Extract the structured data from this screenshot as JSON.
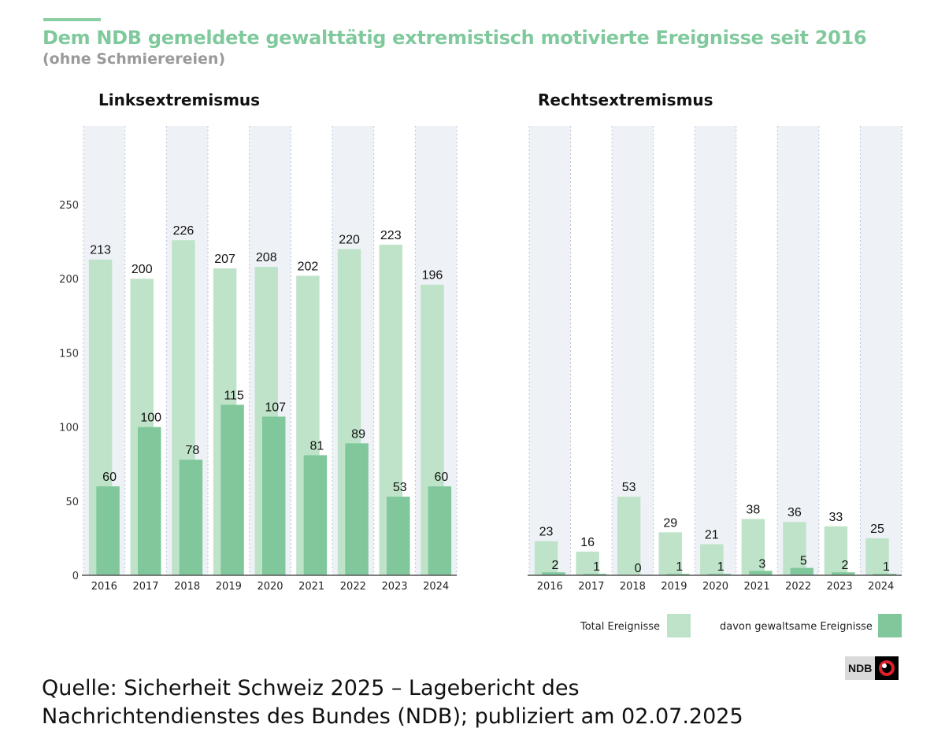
{
  "title": "Dem NDB gemeldete gewalttätig extremistisch motivierte Ereignisse seit 2016",
  "subtitle": "(ohne Schmierereien)",
  "source": [
    "Quelle: Sicherheit Schweiz 2025 – Lagebericht des",
    "Nachrichtendienstes des Bundes (NDB); publiziert am 02.07.2025"
  ],
  "logo_text": "NDB",
  "colors": {
    "total": "#bfe3c9",
    "violent": "#80c89b",
    "column_shade": "#eef2f7",
    "title": "#80c99c"
  },
  "legend": {
    "total": "Total Ereignisse",
    "violent": "davon gewaltsame Ereignisse"
  },
  "chart_data": [
    {
      "type": "bar",
      "title": "Linksextremismus",
      "categories": [
        "2016",
        "2017",
        "2018",
        "2019",
        "2020",
        "2021",
        "2022",
        "2023",
        "2024"
      ],
      "ylim": [
        0,
        250
      ],
      "yticks": [
        0,
        50,
        100,
        150,
        200,
        250
      ],
      "series": [
        {
          "name": "Total Ereignisse",
          "values": [
            213,
            200,
            226,
            207,
            208,
            202,
            220,
            223,
            196
          ]
        },
        {
          "name": "davon gewaltsame Ereignisse",
          "values": [
            60,
            100,
            78,
            115,
            107,
            81,
            89,
            53,
            60
          ]
        }
      ]
    },
    {
      "type": "bar",
      "title": "Rechtsextremismus",
      "categories": [
        "2016",
        "2017",
        "2018",
        "2019",
        "2020",
        "2021",
        "2022",
        "2023",
        "2024"
      ],
      "ylim": [
        0,
        250
      ],
      "series": [
        {
          "name": "Total Ereignisse",
          "values": [
            23,
            16,
            53,
            29,
            21,
            38,
            36,
            33,
            25
          ]
        },
        {
          "name": "davon gewaltsame Ereignisse",
          "values": [
            2,
            1,
            0,
            1,
            1,
            3,
            5,
            2,
            1
          ]
        }
      ]
    }
  ]
}
